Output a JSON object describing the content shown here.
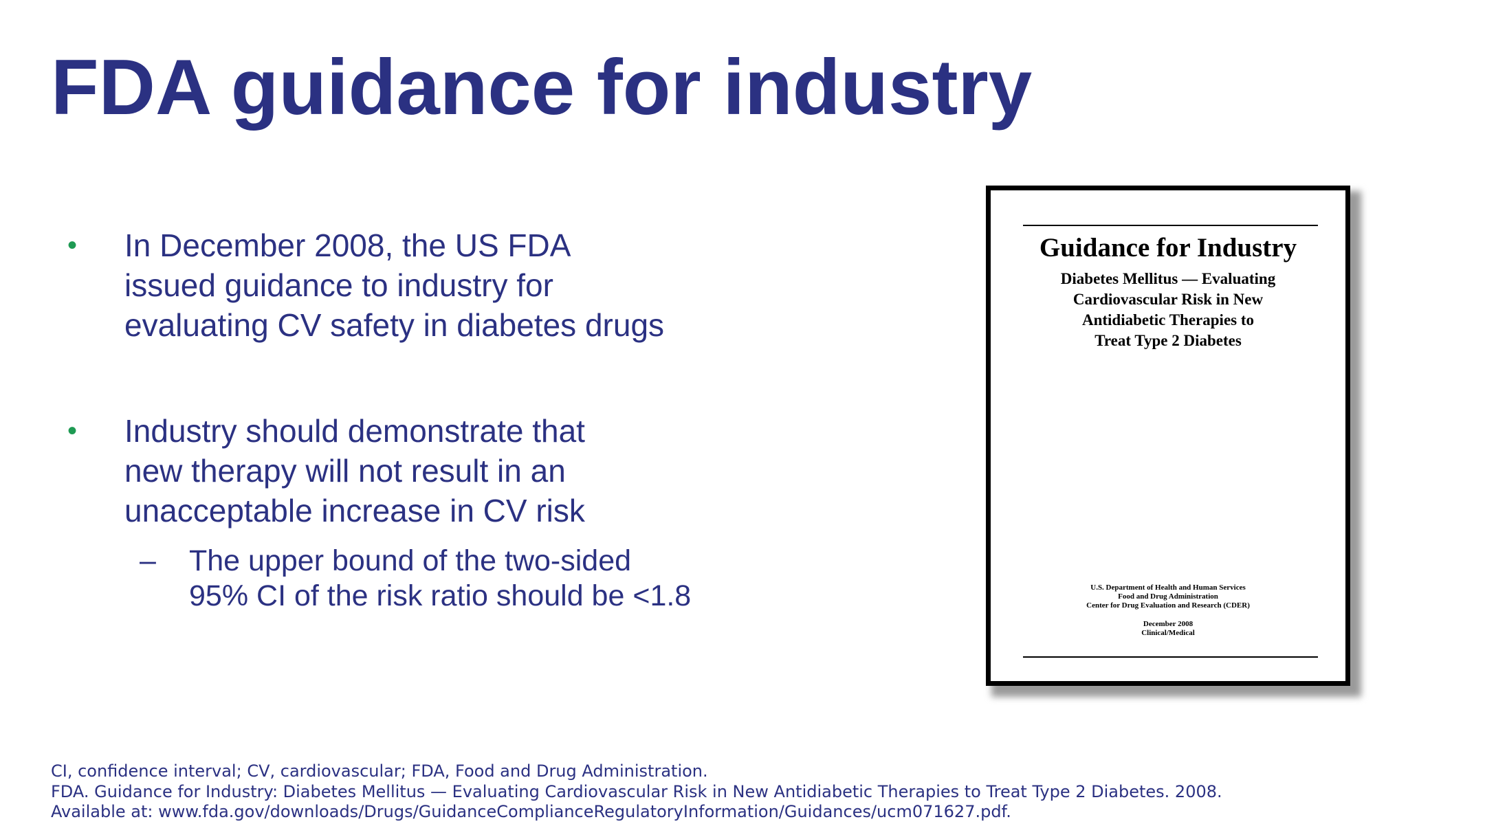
{
  "slide": {
    "title": "FDA guidance for industry"
  },
  "bullets": [
    {
      "marker": "•",
      "text": "In December 2008, the US FDA\nissued guidance to industry for\nevaluating CV safety in diabetes drugs"
    },
    {
      "marker": "•",
      "text": "Industry should demonstrate that\nnew therapy will not result in an\nunacceptable increase in CV risk"
    }
  ],
  "sub_bullets": [
    {
      "marker": "–",
      "text": "The upper bound of the two-sided\n95% CI of the risk ratio should be <1.8"
    }
  ],
  "document_cover": {
    "title": "Guidance for Industry",
    "subtitle": "Diabetes Mellitus — Evaluating\nCardiovascular Risk in New\nAntidiabetic Therapies to\nTreat Type 2 Diabetes",
    "agency": "U.S. Department of Health and Human Services\nFood and Drug Administration\nCenter for Drug Evaluation and Research (CDER)",
    "date": "December 2008\nClinical/Medical"
  },
  "footnotes": [
    "CI, confidence interval; CV, cardiovascular; FDA, Food and Drug Administration.",
    "FDA. Guidance for Industry: Diabetes Mellitus — Evaluating Cardiovascular Risk in New Antidiabetic Therapies to Treat Type 2 Diabetes. 2008.",
    "Available at: www.fda.gov/downloads/Drugs/GuidanceComplianceRegulatoryInformation/Guidances/ucm071627.pdf."
  ],
  "colors": {
    "title": "#2b3182",
    "body_text": "#2b3182",
    "bullet_marker": "#1e9a53",
    "document_border": "#000000"
  }
}
